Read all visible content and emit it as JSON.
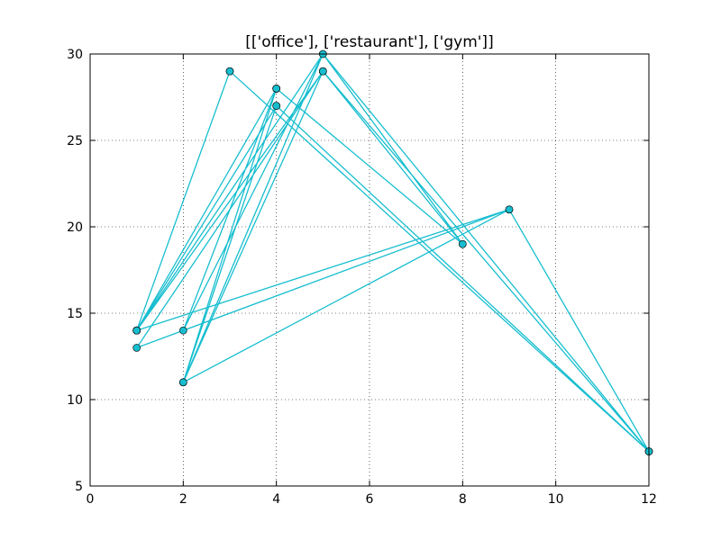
{
  "chart_data": {
    "type": "line",
    "title": "[['office'], ['restaurant'], ['gym']]",
    "xlabel": "",
    "ylabel": "",
    "xlim": [
      0,
      12
    ],
    "ylim": [
      5,
      30
    ],
    "xticks": [
      0,
      2,
      4,
      6,
      8,
      10,
      12
    ],
    "yticks": [
      5,
      10,
      15,
      20,
      25,
      30
    ],
    "grid": true,
    "color": "#17becf",
    "marker_color": "#17becf",
    "series": [
      {
        "x": [
          1,
          3,
          1,
          4,
          2,
          5,
          1,
          4,
          12,
          5,
          1,
          9,
          1,
          4,
          2,
          5,
          12,
          3,
          1,
          4,
          8,
          5,
          2,
          9,
          1,
          5,
          1,
          4,
          2,
          4,
          1,
          5,
          8,
          4,
          1,
          9,
          12,
          5,
          1,
          3
        ],
        "y": [
          14,
          29,
          14,
          28,
          14,
          30,
          14,
          27,
          7,
          29,
          14,
          21,
          14,
          28,
          11,
          29,
          7,
          29,
          14,
          28,
          19,
          30,
          11,
          21,
          13,
          29,
          14,
          27,
          11,
          28,
          14,
          29,
          19,
          28,
          14,
          21,
          7,
          30,
          14,
          29
        ]
      }
    ]
  }
}
